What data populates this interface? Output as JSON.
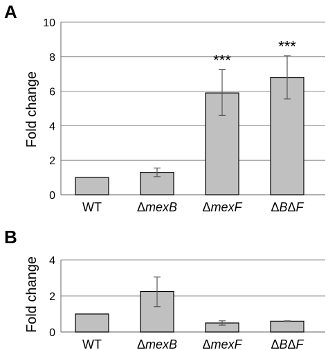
{
  "chart_data": [
    {
      "type": "bar",
      "panel": "A",
      "categories": [
        {
          "prefix": "Δ",
          "italic": "",
          "full": "WT"
        },
        {
          "prefix": "Δ",
          "italic": "mexB",
          "full": "ΔmexB"
        },
        {
          "prefix": "Δ",
          "italic": "mexF",
          "full": "ΔmexF"
        },
        {
          "prefix": "",
          "italic": "ΔBΔF",
          "full": "ΔBΔF"
        }
      ],
      "values": [
        1.0,
        1.3,
        5.9,
        6.8
      ],
      "error_low": [
        1.0,
        1.05,
        4.6,
        5.55
      ],
      "error_high": [
        1.0,
        1.55,
        7.25,
        8.05
      ],
      "annotations": [
        "",
        "",
        "***",
        "***"
      ],
      "title": "",
      "xlabel": "",
      "ylabel": "Fold change",
      "ylim": [
        0,
        10
      ],
      "yticks": [
        0,
        2,
        4,
        6,
        8,
        10
      ],
      "grid": true,
      "bar_color": "#c0c0c0"
    },
    {
      "type": "bar",
      "panel": "B",
      "categories": [
        {
          "prefix": "",
          "italic": "",
          "full": "WT"
        },
        {
          "prefix": "Δ",
          "italic": "mexB",
          "full": "ΔmexB"
        },
        {
          "prefix": "Δ",
          "italic": "mexF",
          "full": "ΔmexF"
        },
        {
          "prefix": "",
          "italic": "ΔBΔF",
          "full": "ΔBΔF"
        }
      ],
      "values": [
        1.0,
        2.25,
        0.5,
        0.6
      ],
      "error_low": [
        1.0,
        1.4,
        0.38,
        0.58
      ],
      "error_high": [
        1.0,
        3.05,
        0.62,
        0.62
      ],
      "annotations": [
        "",
        "",
        "",
        ""
      ],
      "title": "",
      "xlabel": "",
      "ylabel": "Fold change",
      "ylim": [
        0,
        4
      ],
      "yticks": [
        0,
        2,
        4
      ],
      "grid": true,
      "bar_color": "#c0c0c0"
    }
  ],
  "panels": [
    {
      "label": "A"
    },
    {
      "label": "B"
    }
  ]
}
